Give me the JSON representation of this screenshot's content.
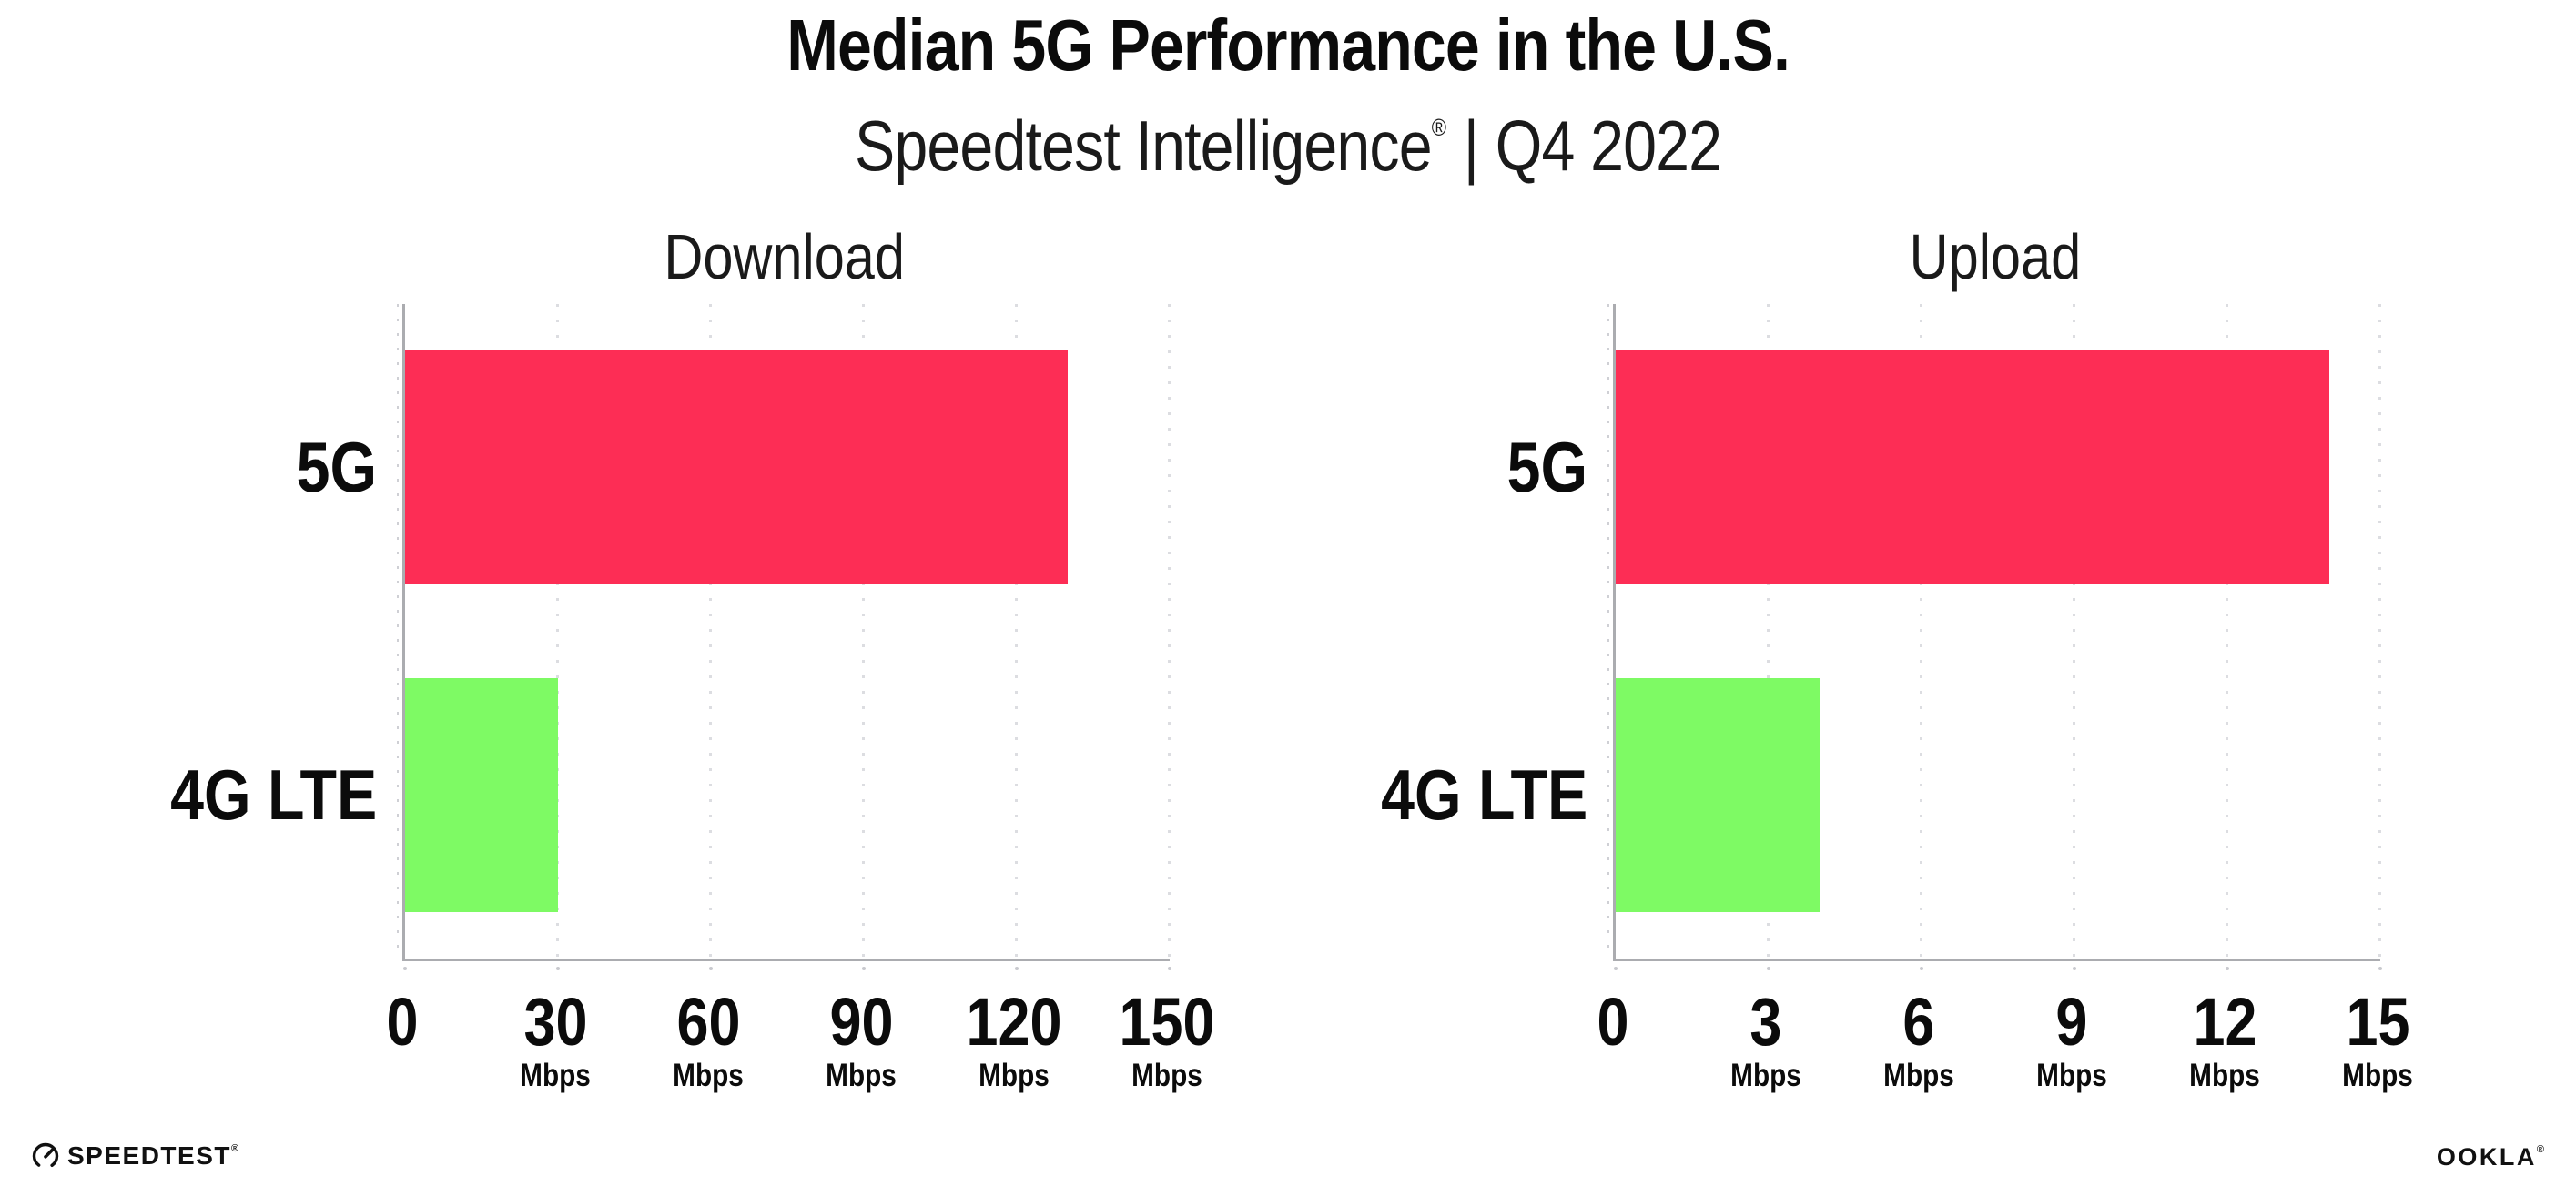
{
  "header": {
    "title": "Median 5G Performance in the U.S.",
    "subtitle": {
      "brand": "Speedtest Intelligence",
      "registered_mark": "®",
      "separator": "|",
      "period": "Q4 2022"
    }
  },
  "chart_data": [
    {
      "type": "bar",
      "orientation": "horizontal",
      "title": "Download",
      "categories": [
        "5G",
        "4G LTE"
      ],
      "values": [
        130,
        30
      ],
      "unit": "Mbps",
      "xlabel": "",
      "ylabel": "",
      "xlim": [
        0,
        150
      ],
      "xticks": [
        0,
        30,
        60,
        90,
        120,
        150
      ],
      "bar_colors": [
        "#fd2d55",
        "#7efa64"
      ],
      "grid": "dotted vertical gridlines at each x tick",
      "legend": "none"
    },
    {
      "type": "bar",
      "orientation": "horizontal",
      "title": "Upload",
      "categories": [
        "5G",
        "4G LTE"
      ],
      "values": [
        14,
        4
      ],
      "unit": "Mbps",
      "xlabel": "",
      "ylabel": "",
      "xlim": [
        0,
        15
      ],
      "xticks": [
        0,
        3,
        6,
        9,
        12,
        15
      ],
      "bar_colors": [
        "#fd2d55",
        "#7efa64"
      ],
      "grid": "dotted vertical gridlines at each x tick",
      "legend": "none"
    }
  ],
  "footer": {
    "speedtest": {
      "label": "SPEEDTEST",
      "mark": "®",
      "icon": "speedtest-gauge-icon"
    },
    "ookla": {
      "label": "OOKLA",
      "mark": "®"
    }
  },
  "style": {
    "bar_5g_color": "#fd2d55",
    "bar_4g_lte_color": "#7efa64",
    "axis_color": "#abacb0",
    "gridline_color": "#dcdde1",
    "text_color": "#0b0b0b",
    "background": "#ffffff"
  }
}
